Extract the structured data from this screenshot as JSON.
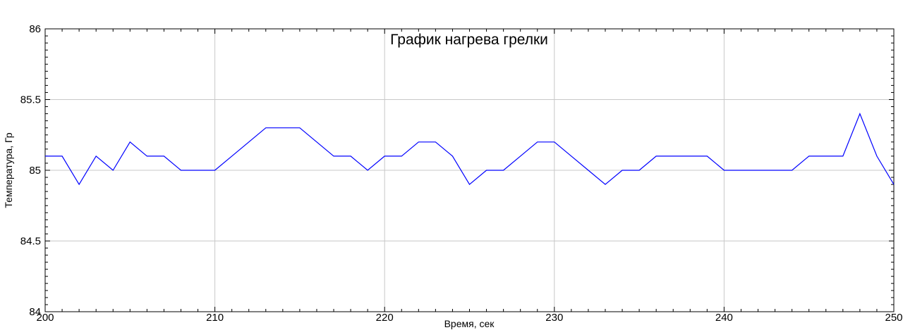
{
  "chart_data": {
    "type": "line",
    "title": "График нагрева грелки",
    "xlabel": "Время, сек",
    "ylabel": "Температура, Гр",
    "xlim": [
      200,
      250
    ],
    "ylim": [
      84,
      86
    ],
    "x_ticks": [
      200,
      210,
      220,
      230,
      240,
      250
    ],
    "x_tick_labels": [
      "200",
      "210",
      "220",
      "230",
      "240",
      "250"
    ],
    "y_ticks": [
      84,
      84.5,
      85,
      85.5,
      86
    ],
    "y_tick_labels": [
      "84",
      "84.5",
      "85",
      "85.5",
      "86"
    ],
    "grid": true,
    "series": [
      {
        "color": "#0000ff",
        "x": [
          200,
          201,
          202,
          203,
          204,
          205,
          206,
          207,
          208,
          209,
          210,
          211,
          212,
          213,
          214,
          215,
          216,
          217,
          218,
          219,
          220,
          221,
          222,
          223,
          224,
          225,
          226,
          227,
          228,
          229,
          230,
          231,
          232,
          233,
          234,
          235,
          236,
          237,
          238,
          239,
          240,
          241,
          242,
          243,
          244,
          245,
          246,
          247,
          248,
          249,
          250
        ],
        "values": [
          85.1,
          85.1,
          84.9,
          85.1,
          85.0,
          85.2,
          85.1,
          85.1,
          85.0,
          85.0,
          85.0,
          85.1,
          85.2,
          85.3,
          85.3,
          85.3,
          85.2,
          85.1,
          85.1,
          85.0,
          85.1,
          85.1,
          85.2,
          85.2,
          85.1,
          84.9,
          85.0,
          85.0,
          85.1,
          85.2,
          85.2,
          85.1,
          85.0,
          84.9,
          85.0,
          85.0,
          85.1,
          85.1,
          85.1,
          85.1,
          85.0,
          85.0,
          85.0,
          85.0,
          85.0,
          85.1,
          85.1,
          85.1,
          85.4,
          85.1,
          84.9
        ]
      }
    ]
  }
}
